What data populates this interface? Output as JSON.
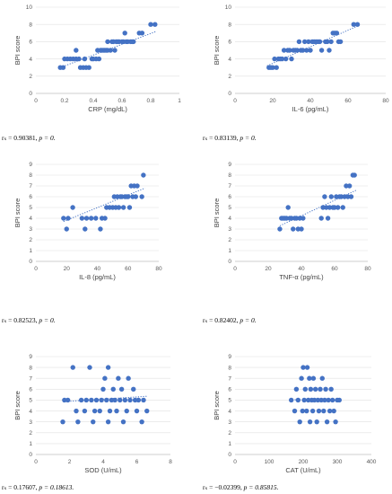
{
  "chart_data": [
    {
      "type": "scatter",
      "xlabel": "CRP (mg/dL)",
      "ylabel": "BPI score",
      "xlim": [
        0,
        1
      ],
      "ylim": [
        0,
        10
      ],
      "xticks": [
        "0",
        "0.2",
        "0.4",
        "0.6",
        "0.8",
        "1"
      ],
      "yticks": [
        "0",
        "2",
        "4",
        "6",
        "8",
        "10"
      ],
      "xtick_values": [
        0,
        0.2,
        0.4,
        0.6,
        0.8,
        1
      ],
      "ytick_values": [
        0,
        2,
        4,
        6,
        8,
        10
      ],
      "trendline": [
        [
          0.17,
          3.0
        ],
        [
          0.84,
          7.2
        ]
      ],
      "points": [
        [
          0.17,
          3
        ],
        [
          0.19,
          3
        ],
        [
          0.2,
          4
        ],
        [
          0.22,
          4
        ],
        [
          0.24,
          4
        ],
        [
          0.26,
          4
        ],
        [
          0.28,
          5
        ],
        [
          0.28,
          4
        ],
        [
          0.3,
          4
        ],
        [
          0.31,
          3
        ],
        [
          0.33,
          3
        ],
        [
          0.34,
          4
        ],
        [
          0.35,
          3
        ],
        [
          0.37,
          3
        ],
        [
          0.39,
          4
        ],
        [
          0.4,
          4
        ],
        [
          0.42,
          4
        ],
        [
          0.43,
          5
        ],
        [
          0.44,
          4
        ],
        [
          0.45,
          5
        ],
        [
          0.46,
          5
        ],
        [
          0.47,
          5
        ],
        [
          0.48,
          5
        ],
        [
          0.49,
          5
        ],
        [
          0.5,
          6
        ],
        [
          0.5,
          5
        ],
        [
          0.52,
          5
        ],
        [
          0.53,
          6
        ],
        [
          0.54,
          6
        ],
        [
          0.55,
          5
        ],
        [
          0.56,
          6
        ],
        [
          0.57,
          6
        ],
        [
          0.58,
          6
        ],
        [
          0.6,
          6
        ],
        [
          0.61,
          6
        ],
        [
          0.62,
          7
        ],
        [
          0.63,
          6
        ],
        [
          0.64,
          6
        ],
        [
          0.66,
          6
        ],
        [
          0.67,
          6
        ],
        [
          0.68,
          6
        ],
        [
          0.72,
          7
        ],
        [
          0.74,
          7
        ],
        [
          0.8,
          8
        ],
        [
          0.83,
          8
        ]
      ],
      "caption": "rₛ = 0.90381, ",
      "caption_p": "p = 0."
    },
    {
      "type": "scatter",
      "xlabel": "IL-6 (pg/mL)",
      "ylabel": "BPI score",
      "xlim": [
        0,
        80
      ],
      "ylim": [
        0,
        10
      ],
      "xticks": [
        "0",
        "20",
        "40",
        "60",
        "80"
      ],
      "yticks": [
        "0",
        "2",
        "4",
        "6",
        "8",
        "10"
      ],
      "xtick_values": [
        0,
        20,
        40,
        60,
        80
      ],
      "ytick_values": [
        0,
        2,
        4,
        6,
        8,
        10
      ],
      "trendline": [
        [
          17,
          3.2
        ],
        [
          66,
          7.9
        ]
      ],
      "points": [
        [
          18,
          3
        ],
        [
          19,
          3
        ],
        [
          20,
          3
        ],
        [
          21,
          4
        ],
        [
          22,
          3
        ],
        [
          23,
          4
        ],
        [
          24,
          4
        ],
        [
          25,
          4
        ],
        [
          26,
          5
        ],
        [
          27,
          4
        ],
        [
          28,
          5
        ],
        [
          29,
          5
        ],
        [
          30,
          4
        ],
        [
          31,
          5
        ],
        [
          32,
          5
        ],
        [
          33,
          5
        ],
        [
          34,
          6
        ],
        [
          35,
          5
        ],
        [
          36,
          5
        ],
        [
          37,
          6
        ],
        [
          38,
          5
        ],
        [
          39,
          6
        ],
        [
          40,
          5
        ],
        [
          41,
          6
        ],
        [
          42,
          6
        ],
        [
          43,
          6
        ],
        [
          44,
          6
        ],
        [
          45,
          6
        ],
        [
          46,
          5
        ],
        [
          48,
          6
        ],
        [
          49,
          6
        ],
        [
          50,
          5
        ],
        [
          51,
          6
        ],
        [
          52,
          7
        ],
        [
          53,
          7
        ],
        [
          54,
          7
        ],
        [
          55,
          6
        ],
        [
          56,
          6
        ],
        [
          63,
          8
        ],
        [
          65,
          8
        ]
      ],
      "caption": "rₛ = 0.83139, ",
      "caption_p": "p = 0."
    },
    {
      "type": "scatter",
      "xlabel": "IL-8 (pg/mL)",
      "ylabel": "BPI score",
      "xlim": [
        0,
        80
      ],
      "ylim": [
        0,
        9
      ],
      "xticks": [
        "0",
        "20",
        "40",
        "60",
        "80"
      ],
      "yticks": [
        "0",
        "1",
        "2",
        "3",
        "4",
        "5",
        "6",
        "7",
        "8",
        "9"
      ],
      "xtick_values": [
        0,
        20,
        40,
        60,
        80
      ],
      "ytick_values": [
        0,
        1,
        2,
        3,
        4,
        5,
        6,
        7,
        8,
        9
      ],
      "trendline": [
        [
          18,
          3.7
        ],
        [
          71,
          6.8
        ]
      ],
      "points": [
        [
          18,
          4
        ],
        [
          20,
          3
        ],
        [
          21,
          4
        ],
        [
          24,
          5
        ],
        [
          30,
          4
        ],
        [
          32,
          3
        ],
        [
          33,
          4
        ],
        [
          36,
          4
        ],
        [
          39,
          4
        ],
        [
          42,
          3
        ],
        [
          43,
          4
        ],
        [
          45,
          4
        ],
        [
          46,
          5
        ],
        [
          48,
          5
        ],
        [
          50,
          5
        ],
        [
          51,
          6
        ],
        [
          52,
          5
        ],
        [
          53,
          6
        ],
        [
          54,
          5
        ],
        [
          55,
          6
        ],
        [
          56,
          6
        ],
        [
          57,
          5
        ],
        [
          58,
          6
        ],
        [
          59,
          6
        ],
        [
          60,
          6
        ],
        [
          61,
          5
        ],
        [
          62,
          7
        ],
        [
          63,
          6
        ],
        [
          64,
          7
        ],
        [
          65,
          6
        ],
        [
          66,
          7
        ],
        [
          69,
          6
        ],
        [
          70,
          8
        ]
      ],
      "caption": "rₛ = 0.82523, ",
      "caption_p": "p = 0."
    },
    {
      "type": "scatter",
      "xlabel": "TNF-α (pg/mL)",
      "ylabel": "BPI score",
      "xlim": [
        0,
        80
      ],
      "ylim": [
        0,
        9
      ],
      "xticks": [
        "0",
        "20",
        "40",
        "60",
        "80"
      ],
      "yticks": [
        "0",
        "1",
        "2",
        "3",
        "4",
        "5",
        "6",
        "7",
        "8",
        "9"
      ],
      "xtick_values": [
        0,
        20,
        40,
        60,
        80
      ],
      "ytick_values": [
        0,
        1,
        2,
        3,
        4,
        5,
        6,
        7,
        8,
        9
      ],
      "trendline": [
        [
          27,
          3.3
        ],
        [
          73,
          6.6
        ]
      ],
      "points": [
        [
          27,
          3
        ],
        [
          28,
          4
        ],
        [
          29,
          4
        ],
        [
          30,
          4
        ],
        [
          31,
          4
        ],
        [
          32,
          5
        ],
        [
          33,
          4
        ],
        [
          34,
          4
        ],
        [
          35,
          3
        ],
        [
          36,
          4
        ],
        [
          37,
          4
        ],
        [
          38,
          3
        ],
        [
          39,
          4
        ],
        [
          40,
          3
        ],
        [
          41,
          4
        ],
        [
          52,
          4
        ],
        [
          53,
          5
        ],
        [
          54,
          6
        ],
        [
          55,
          5
        ],
        [
          56,
          4
        ],
        [
          57,
          5
        ],
        [
          58,
          6
        ],
        [
          59,
          5
        ],
        [
          60,
          5
        ],
        [
          61,
          6
        ],
        [
          62,
          5
        ],
        [
          63,
          6
        ],
        [
          64,
          6
        ],
        [
          65,
          5
        ],
        [
          66,
          6
        ],
        [
          67,
          7
        ],
        [
          68,
          6
        ],
        [
          69,
          7
        ],
        [
          70,
          6
        ],
        [
          71,
          8
        ],
        [
          72,
          8
        ]
      ],
      "caption": "rₛ = 0.82402, ",
      "caption_p": "p = 0."
    },
    {
      "type": "scatter",
      "xlabel": "SOD (U/mL)",
      "ylabel": "BPI score",
      "xlim": [
        0,
        8
      ],
      "ylim": [
        0,
        9
      ],
      "xticks": [
        "0",
        "2",
        "4",
        "6",
        "8"
      ],
      "yticks": [
        "0",
        "1",
        "2",
        "3",
        "4",
        "5",
        "6",
        "7",
        "8",
        "9"
      ],
      "xtick_values": [
        0,
        2,
        4,
        6,
        8
      ],
      "ytick_values": [
        0,
        1,
        2,
        3,
        4,
        5,
        6,
        7,
        8,
        9
      ],
      "trendline": [
        [
          1.6,
          4.85
        ],
        [
          6.6,
          5.35
        ]
      ],
      "points": [
        [
          1.6,
          3
        ],
        [
          1.7,
          5
        ],
        [
          1.9,
          5
        ],
        [
          2.2,
          8
        ],
        [
          2.4,
          4
        ],
        [
          2.5,
          3
        ],
        [
          2.7,
          5
        ],
        [
          2.9,
          4
        ],
        [
          3.0,
          5
        ],
        [
          3.2,
          8
        ],
        [
          3.3,
          5
        ],
        [
          3.4,
          3
        ],
        [
          3.5,
          4
        ],
        [
          3.6,
          5
        ],
        [
          3.8,
          4
        ],
        [
          3.9,
          5
        ],
        [
          4.0,
          6
        ],
        [
          4.1,
          7
        ],
        [
          4.2,
          5
        ],
        [
          4.3,
          3
        ],
        [
          4.3,
          8
        ],
        [
          4.4,
          4
        ],
        [
          4.5,
          5
        ],
        [
          4.6,
          6
        ],
        [
          4.7,
          5
        ],
        [
          4.8,
          4
        ],
        [
          4.9,
          7
        ],
        [
          5.0,
          5
        ],
        [
          5.1,
          6
        ],
        [
          5.2,
          3
        ],
        [
          5.3,
          5
        ],
        [
          5.4,
          4
        ],
        [
          5.5,
          7
        ],
        [
          5.6,
          5
        ],
        [
          5.8,
          6
        ],
        [
          5.9,
          5
        ],
        [
          6.0,
          4
        ],
        [
          6.1,
          5
        ],
        [
          6.3,
          3
        ],
        [
          6.4,
          5
        ],
        [
          6.6,
          4
        ]
      ],
      "caption": "rₛ = 0.17607, ",
      "caption_p": "p = 0.18613."
    },
    {
      "type": "scatter",
      "xlabel": "CAT (U/mL)",
      "ylabel": "BPI score",
      "xlim": [
        0,
        400
      ],
      "ylim": [
        0,
        9
      ],
      "xticks": [
        "0",
        "100",
        "200",
        "300",
        "400"
      ],
      "yticks": [
        "0",
        "1",
        "2",
        "3",
        "4",
        "5",
        "6",
        "7",
        "8",
        "9"
      ],
      "xtick_values": [
        0,
        100,
        200,
        300,
        400
      ],
      "ytick_values": [
        0,
        1,
        2,
        3,
        4,
        5,
        6,
        7,
        8,
        9
      ],
      "trendline": [
        [
          160,
          5.05
        ],
        [
          310,
          4.95
        ]
      ],
      "points": [
        [
          165,
          5
        ],
        [
          175,
          4
        ],
        [
          180,
          6
        ],
        [
          185,
          5
        ],
        [
          190,
          3
        ],
        [
          195,
          7
        ],
        [
          198,
          4
        ],
        [
          200,
          8
        ],
        [
          203,
          5
        ],
        [
          206,
          6
        ],
        [
          210,
          4
        ],
        [
          212,
          8
        ],
        [
          215,
          5
        ],
        [
          218,
          7
        ],
        [
          220,
          3
        ],
        [
          222,
          6
        ],
        [
          225,
          5
        ],
        [
          228,
          4
        ],
        [
          230,
          7
        ],
        [
          233,
          5
        ],
        [
          236,
          6
        ],
        [
          240,
          3
        ],
        [
          243,
          5
        ],
        [
          246,
          4
        ],
        [
          250,
          6
        ],
        [
          253,
          5
        ],
        [
          256,
          7
        ],
        [
          260,
          4
        ],
        [
          263,
          5
        ],
        [
          266,
          6
        ],
        [
          270,
          3
        ],
        [
          274,
          5
        ],
        [
          278,
          4
        ],
        [
          282,
          6
        ],
        [
          286,
          5
        ],
        [
          290,
          4
        ],
        [
          295,
          3
        ],
        [
          300,
          5
        ],
        [
          306,
          5
        ]
      ],
      "caption": "rₛ = −0.02399, ",
      "caption_p": "p = 0.85815."
    }
  ]
}
